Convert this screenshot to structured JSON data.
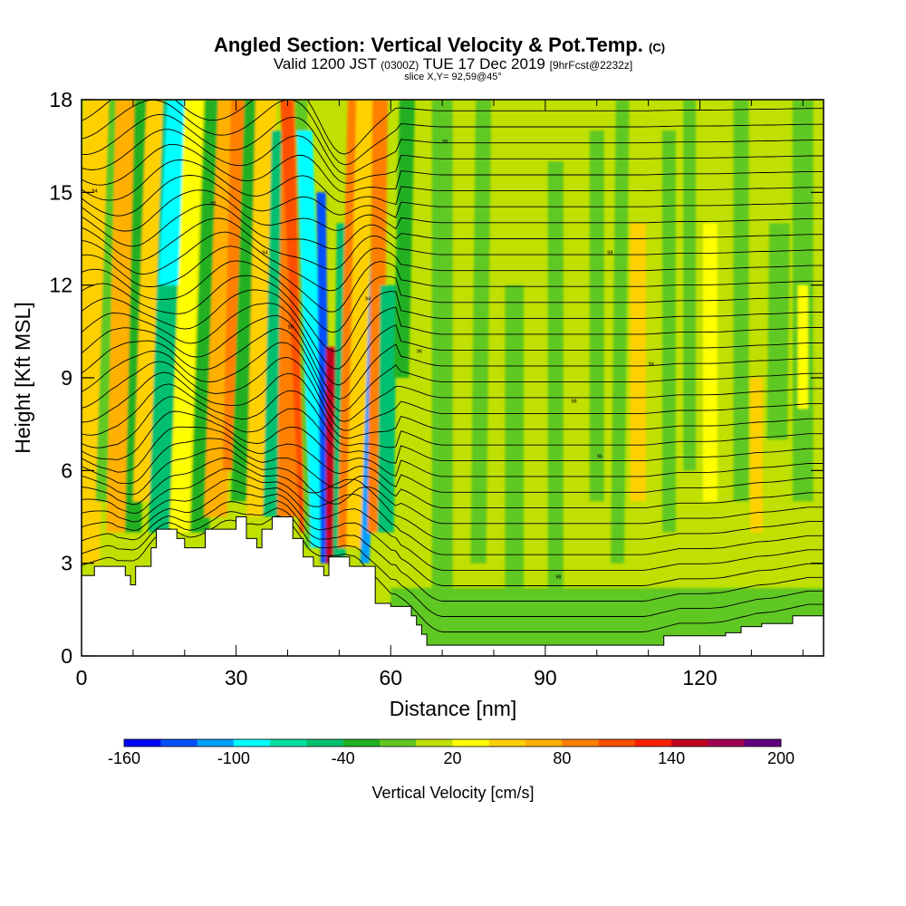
{
  "header": {
    "title": "Angled Section: Vertical Velocity & Pot.Temp.",
    "title_tag": "(C)",
    "valid_main": "Valid 1200 JST",
    "valid_utc": "(0300Z)",
    "valid_date": "TUE 17 Dec 2019",
    "fcst": "[9hrFcst@2232z]",
    "slice": "slice X,Y= 92,59@45°"
  },
  "chart_data": {
    "type": "heatmap",
    "title": "Angled Section: Vertical Velocity & Pot.Temp.",
    "xlabel": "Distance [nm]",
    "ylabel": "Height [Kft MSL]",
    "xlim": [
      0,
      144
    ],
    "ylim": [
      0,
      18
    ],
    "x_ticks": [
      0,
      30,
      60,
      90,
      120
    ],
    "y_ticks": [
      0,
      3,
      6,
      9,
      12,
      15,
      18
    ],
    "x_tick_labels": [
      "0",
      "30",
      "60",
      "90",
      "120"
    ],
    "y_tick_labels": [
      "0",
      "3",
      "6",
      "9",
      "12",
      "15",
      "18"
    ],
    "colorbar": {
      "label": "Vertical Velocity [cm/s]",
      "min": -160,
      "max": 200,
      "step": 20,
      "tick_values": [
        -160,
        -100,
        -40,
        20,
        80,
        140,
        200
      ],
      "tick_labels": [
        "-160",
        "-100",
        "-40",
        "20",
        "80",
        "140",
        "200"
      ],
      "colors": [
        "#0000ff",
        "#0050ff",
        "#00a0ff",
        "#00ffff",
        "#00e0a0",
        "#00c070",
        "#20b020",
        "#60c820",
        "#c0e000",
        "#ffff00",
        "#ffd000",
        "#ffb000",
        "#ff8000",
        "#ff5000",
        "#ff2000",
        "#c00020",
        "#a00050",
        "#600080"
      ]
    },
    "terrain": [
      [
        0,
        2.6
      ],
      [
        2.5,
        2.6
      ],
      [
        2.5,
        2.9
      ],
      [
        8.5,
        2.9
      ],
      [
        8.5,
        2.6
      ],
      [
        9.5,
        2.6
      ],
      [
        9.5,
        2.3
      ],
      [
        10.5,
        2.3
      ],
      [
        10.5,
        2.9
      ],
      [
        13.5,
        2.9
      ],
      [
        13.5,
        3.5
      ],
      [
        14.5,
        3.5
      ],
      [
        14.5,
        4.1
      ],
      [
        18.5,
        4.1
      ],
      [
        18.5,
        3.8
      ],
      [
        20,
        3.8
      ],
      [
        20,
        3.5
      ],
      [
        24,
        3.5
      ],
      [
        24,
        4.1
      ],
      [
        30,
        4.1
      ],
      [
        30,
        4.5
      ],
      [
        32,
        4.5
      ],
      [
        32,
        3.8
      ],
      [
        34,
        3.8
      ],
      [
        34,
        3.5
      ],
      [
        35,
        3.5
      ],
      [
        35,
        4.1
      ],
      [
        37,
        4.1
      ],
      [
        37,
        4.5
      ],
      [
        41,
        4.5
      ],
      [
        41,
        3.8
      ],
      [
        43,
        3.8
      ],
      [
        43,
        3.2
      ],
      [
        45,
        3.2
      ],
      [
        45,
        2.9
      ],
      [
        47,
        2.9
      ],
      [
        47,
        2.6
      ],
      [
        48,
        2.6
      ],
      [
        48,
        3.2
      ],
      [
        52,
        3.2
      ],
      [
        52,
        2.9
      ],
      [
        57,
        2.9
      ],
      [
        57,
        1.7
      ],
      [
        60,
        1.7
      ],
      [
        60,
        1.6
      ],
      [
        64,
        1.6
      ],
      [
        64,
        1.3
      ],
      [
        65,
        1.3
      ],
      [
        65,
        1.0
      ],
      [
        66,
        1.0
      ],
      [
        66,
        0.7
      ],
      [
        67,
        0.7
      ],
      [
        67,
        0.35
      ],
      [
        113,
        0.35
      ],
      [
        113,
        0.65
      ],
      [
        125,
        0.65
      ],
      [
        125,
        0.75
      ],
      [
        128,
        0.75
      ],
      [
        128,
        0.95
      ],
      [
        132,
        0.95
      ],
      [
        132,
        1.05
      ],
      [
        138,
        1.05
      ],
      [
        138,
        1.3
      ],
      [
        144,
        1.3
      ]
    ],
    "contour_labels": [
      "94",
      "96",
      "98"
    ]
  }
}
